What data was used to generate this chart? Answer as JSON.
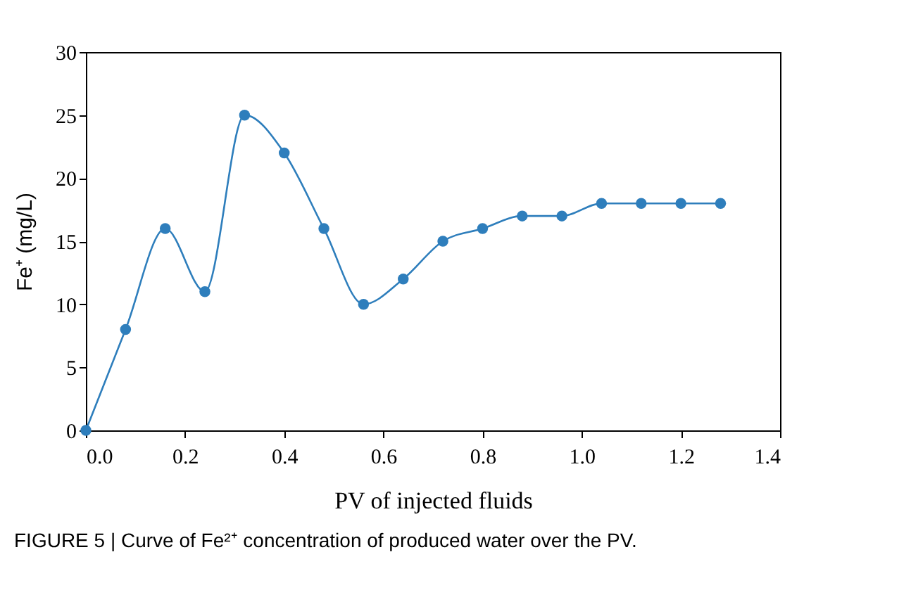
{
  "chart_data": {
    "type": "line",
    "xlabel": "PV of injected fluids",
    "ylabel": "Fe⁺ (mg/L)",
    "x": [
      0,
      0.08,
      0.16,
      0.24,
      0.32,
      0.4,
      0.48,
      0.56,
      0.64,
      0.72,
      0.8,
      0.88,
      0.96,
      1.04,
      1.12,
      1.2,
      1.28
    ],
    "series": [
      {
        "color": "#2e7ebc",
        "values": [
          0,
          8,
          16,
          11,
          25,
          22,
          16,
          10,
          12,
          15,
          16,
          17,
          17,
          18,
          18,
          18,
          18
        ]
      }
    ],
    "xlim": [
      0,
      1.4
    ],
    "xticks": [
      {
        "value": 0,
        "label": "0.0"
      },
      {
        "value": 0.2,
        "label": "0.2"
      },
      {
        "value": 0.4,
        "label": "0.4"
      },
      {
        "value": 0.6,
        "label": "0.6"
      },
      {
        "value": 0.8,
        "label": "0.8"
      },
      {
        "value": 1,
        "label": "1.0"
      },
      {
        "value": 1.2,
        "label": "1.2"
      },
      {
        "value": 1.4,
        "label": "1.4"
      }
    ],
    "ylim": [
      0,
      30
    ],
    "yticks": [
      0,
      5,
      10,
      15,
      20,
      25,
      30
    ],
    "grid": false,
    "marker": "circle",
    "line_style": "solid",
    "annotations": [
      "FIGURE 5 | Curve of Fe²⁺ concentration of produced water over the PV."
    ]
  }
}
